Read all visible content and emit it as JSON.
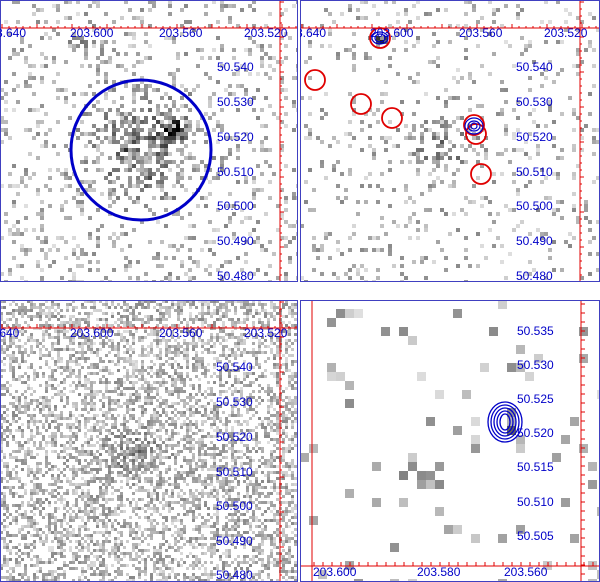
{
  "panels": [
    {
      "id": "top-left",
      "x_ticks": [
        "3.640",
        "203.600",
        "203.560",
        "203.520"
      ],
      "y_ticks": [
        "50.540",
        "50.530",
        "50.520",
        "50.510",
        "50.500",
        "50.490",
        "50.480"
      ],
      "background_level": 0.1,
      "source_density": 0.95,
      "overlays": [
        {
          "shape": "circle",
          "color": "#0000c8"
        }
      ]
    },
    {
      "id": "top-right",
      "x_ticks": [
        "3.640",
        "203.600",
        "203.560",
        "203.520"
      ],
      "y_ticks": [
        "50.540",
        "50.530",
        "50.520",
        "50.510",
        "50.500",
        "50.490",
        "50.480"
      ],
      "background_level": 0.08,
      "overlays": [
        {
          "shape": "circles",
          "color": "#e00000",
          "count": 7
        },
        {
          "shape": "contours",
          "color": "#0000c8"
        }
      ]
    },
    {
      "id": "bottom-left",
      "x_ticks": [
        ".640",
        "203.600",
        "203.560",
        "203.520"
      ],
      "y_ticks": [
        "50.540",
        "50.530",
        "50.520",
        "50.510",
        "50.500",
        "50.490",
        "50.480"
      ],
      "background_level": 0.35
    },
    {
      "id": "bottom-right",
      "x_ticks": [
        "203.600",
        "203.580",
        "203.560"
      ],
      "y_ticks": [
        "50.535",
        "50.530",
        "50.525",
        "50.520",
        "50.515",
        "50.510",
        "50.505"
      ],
      "overlays": [
        {
          "shape": "contours",
          "color": "#0000c8"
        }
      ]
    }
  ],
  "colors": {
    "label": "#0000c8",
    "frame": "#4040c0",
    "grid_tick": "#e00000",
    "region": "#0000c8",
    "source_circle": "#e00000"
  }
}
